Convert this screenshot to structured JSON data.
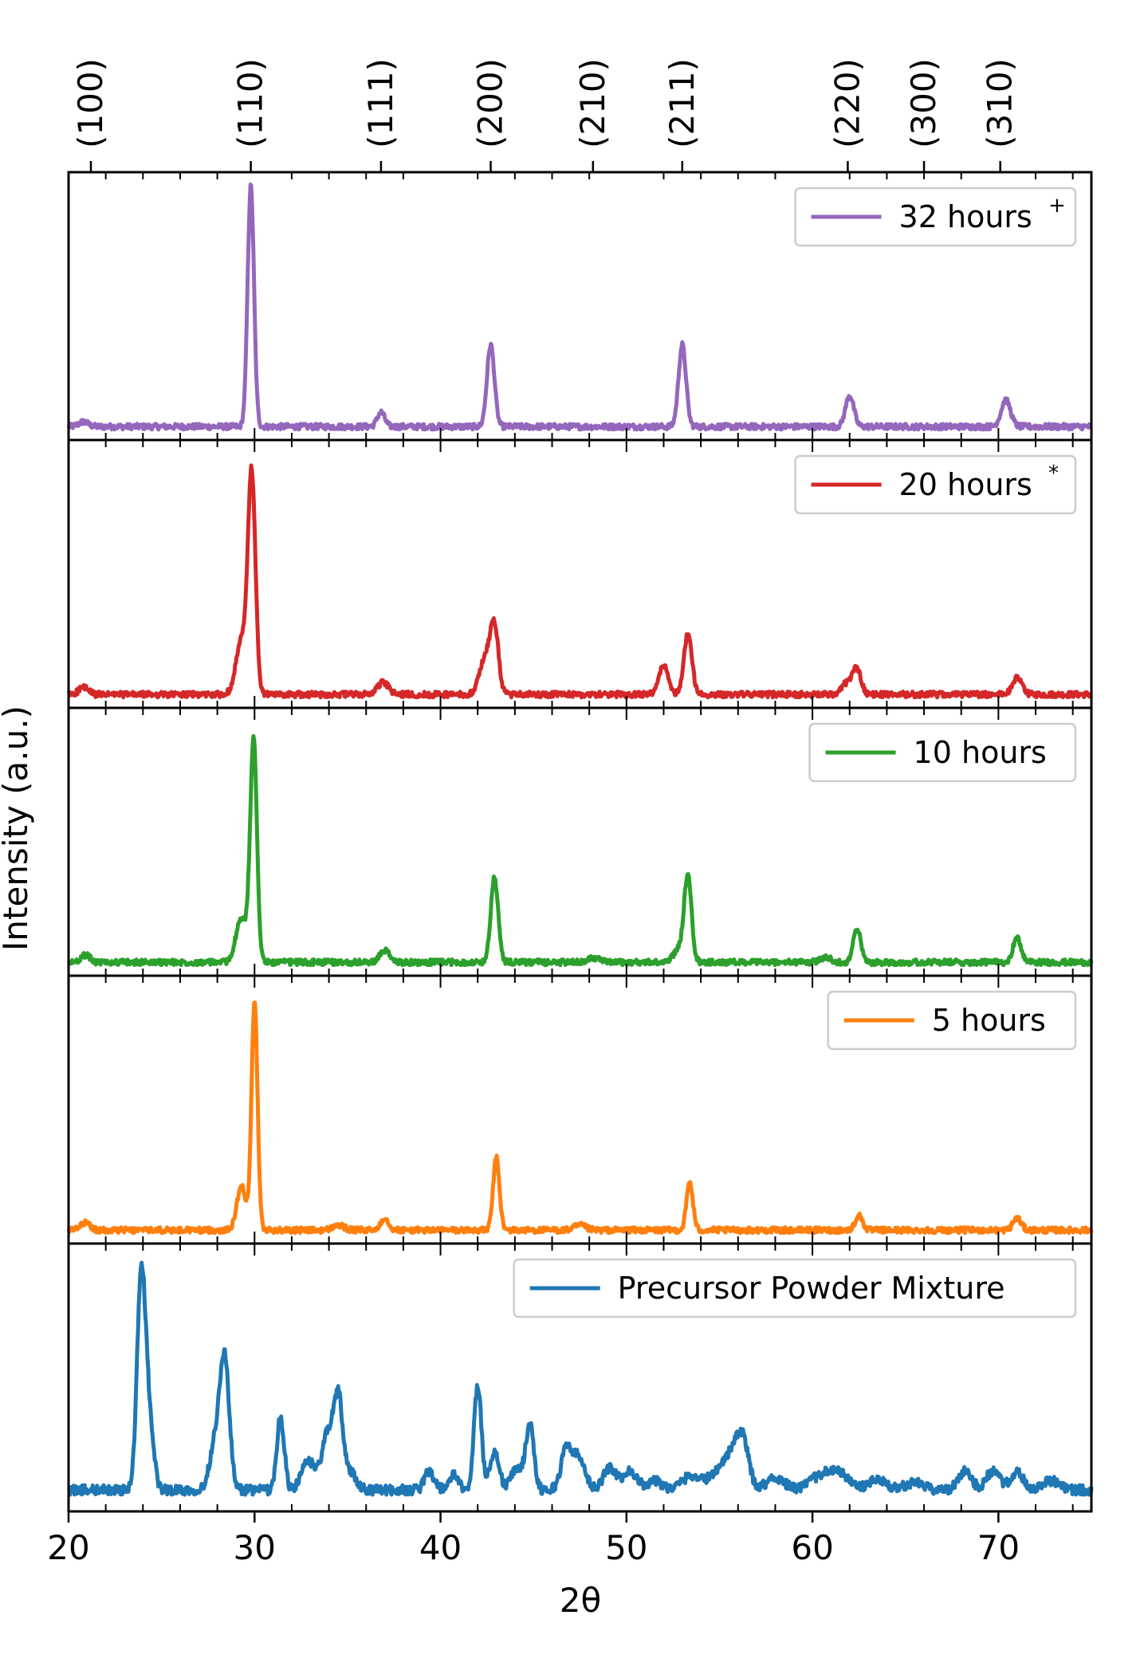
{
  "chart_data": {
    "type": "line",
    "xlabel": "2θ",
    "ylabel": "Intensity (a.u.)",
    "xlim": [
      20,
      75
    ],
    "x_ticks": [
      20,
      30,
      40,
      50,
      60,
      70
    ],
    "y_ticks": "none",
    "top_axis": {
      "tick_positions": [
        21.2,
        29.8,
        36.8,
        42.7,
        48.2,
        53.0,
        61.9,
        66.0,
        70.1
      ],
      "tick_labels": [
        "(100)",
        "(110)",
        "(111)",
        "(200)",
        "(210)",
        "(211)",
        "(220)",
        "(300)",
        "(310)"
      ]
    },
    "legend_placement": "top-right",
    "panels": [
      {
        "name": "32 hours",
        "legend_label": "32 hours",
        "legend_marker": "+",
        "color": "#9467bd",
        "baseline": 0.05,
        "peaks": [
          {
            "x": 20.8,
            "h": 0.02,
            "w": 0.25
          },
          {
            "x": 29.8,
            "h": 1.0,
            "w": 0.17
          },
          {
            "x": 36.8,
            "h": 0.06,
            "w": 0.2
          },
          {
            "x": 42.7,
            "h": 0.34,
            "w": 0.2
          },
          {
            "x": 53.0,
            "h": 0.34,
            "w": 0.2
          },
          {
            "x": 62.0,
            "h": 0.13,
            "w": 0.22
          },
          {
            "x": 70.4,
            "h": 0.11,
            "w": 0.25
          }
        ]
      },
      {
        "name": "20 hours",
        "legend_label": "20 hours",
        "legend_marker": "*",
        "color": "#d62728",
        "baseline": 0.05,
        "peaks": [
          {
            "x": 20.8,
            "h": 0.03,
            "w": 0.25
          },
          {
            "x": 29.3,
            "h": 0.22,
            "w": 0.3
          },
          {
            "x": 29.85,
            "h": 0.9,
            "w": 0.2
          },
          {
            "x": 36.9,
            "h": 0.05,
            "w": 0.3
          },
          {
            "x": 42.4,
            "h": 0.15,
            "w": 0.3
          },
          {
            "x": 42.9,
            "h": 0.27,
            "w": 0.22
          },
          {
            "x": 52.0,
            "h": 0.12,
            "w": 0.25
          },
          {
            "x": 53.3,
            "h": 0.25,
            "w": 0.22
          },
          {
            "x": 61.9,
            "h": 0.05,
            "w": 0.3
          },
          {
            "x": 62.4,
            "h": 0.1,
            "w": 0.22
          },
          {
            "x": 71.0,
            "h": 0.07,
            "w": 0.25
          }
        ]
      },
      {
        "name": "10 hours",
        "legend_label": "10 hours",
        "legend_marker": "",
        "color": "#2ca02c",
        "baseline": 0.05,
        "peaks": [
          {
            "x": 20.9,
            "h": 0.03,
            "w": 0.25
          },
          {
            "x": 29.3,
            "h": 0.18,
            "w": 0.3
          },
          {
            "x": 29.95,
            "h": 0.92,
            "w": 0.18
          },
          {
            "x": 37.0,
            "h": 0.05,
            "w": 0.25
          },
          {
            "x": 42.9,
            "h": 0.35,
            "w": 0.2
          },
          {
            "x": 48.2,
            "h": 0.02,
            "w": 0.3
          },
          {
            "x": 52.8,
            "h": 0.05,
            "w": 0.3
          },
          {
            "x": 53.3,
            "h": 0.35,
            "w": 0.2
          },
          {
            "x": 60.7,
            "h": 0.02,
            "w": 0.3
          },
          {
            "x": 62.4,
            "h": 0.14,
            "w": 0.2
          },
          {
            "x": 71.0,
            "h": 0.1,
            "w": 0.22
          }
        ]
      },
      {
        "name": "5 hours",
        "legend_label": "5 hours",
        "legend_marker": "",
        "color": "#ff7f0e",
        "baseline": 0.05,
        "peaks": [
          {
            "x": 20.9,
            "h": 0.03,
            "w": 0.25
          },
          {
            "x": 29.3,
            "h": 0.18,
            "w": 0.25
          },
          {
            "x": 30.0,
            "h": 0.95,
            "w": 0.16
          },
          {
            "x": 34.5,
            "h": 0.02,
            "w": 0.3
          },
          {
            "x": 37.0,
            "h": 0.05,
            "w": 0.22
          },
          {
            "x": 43.0,
            "h": 0.3,
            "w": 0.17
          },
          {
            "x": 47.5,
            "h": 0.02,
            "w": 0.3
          },
          {
            "x": 53.4,
            "h": 0.2,
            "w": 0.17
          },
          {
            "x": 62.5,
            "h": 0.06,
            "w": 0.2
          },
          {
            "x": 71.0,
            "h": 0.05,
            "w": 0.22
          }
        ]
      },
      {
        "name": "Precursor Powder Mixture",
        "legend_label": "Precursor Powder Mixture",
        "legend_marker": "",
        "color": "#1f77b4",
        "baseline": 0.08,
        "peaks": [
          {
            "x": 23.9,
            "h": 0.85,
            "w": 0.22
          },
          {
            "x": 24.3,
            "h": 0.3,
            "w": 0.25
          },
          {
            "x": 27.9,
            "h": 0.2,
            "w": 0.3
          },
          {
            "x": 28.4,
            "h": 0.52,
            "w": 0.25
          },
          {
            "x": 31.4,
            "h": 0.3,
            "w": 0.2
          },
          {
            "x": 32.9,
            "h": 0.12,
            "w": 0.35
          },
          {
            "x": 33.9,
            "h": 0.22,
            "w": 0.3
          },
          {
            "x": 34.5,
            "h": 0.38,
            "w": 0.25
          },
          {
            "x": 35.2,
            "h": 0.07,
            "w": 0.3
          },
          {
            "x": 39.4,
            "h": 0.08,
            "w": 0.25
          },
          {
            "x": 40.7,
            "h": 0.06,
            "w": 0.25
          },
          {
            "x": 42.0,
            "h": 0.43,
            "w": 0.2
          },
          {
            "x": 42.9,
            "h": 0.16,
            "w": 0.25
          },
          {
            "x": 44.1,
            "h": 0.09,
            "w": 0.3
          },
          {
            "x": 44.8,
            "h": 0.27,
            "w": 0.22
          },
          {
            "x": 46.8,
            "h": 0.18,
            "w": 0.3
          },
          {
            "x": 47.5,
            "h": 0.13,
            "w": 0.3
          },
          {
            "x": 49.1,
            "h": 0.09,
            "w": 0.35
          },
          {
            "x": 50.2,
            "h": 0.08,
            "w": 0.35
          },
          {
            "x": 51.5,
            "h": 0.04,
            "w": 0.4
          },
          {
            "x": 53.5,
            "h": 0.06,
            "w": 0.5
          },
          {
            "x": 55.0,
            "h": 0.08,
            "w": 0.5
          },
          {
            "x": 55.8,
            "h": 0.14,
            "w": 0.4
          },
          {
            "x": 56.3,
            "h": 0.16,
            "w": 0.3
          },
          {
            "x": 58.0,
            "h": 0.05,
            "w": 0.5
          },
          {
            "x": 60.5,
            "h": 0.06,
            "w": 0.6
          },
          {
            "x": 61.5,
            "h": 0.06,
            "w": 0.5
          },
          {
            "x": 63.5,
            "h": 0.04,
            "w": 0.5
          },
          {
            "x": 65.5,
            "h": 0.03,
            "w": 0.5
          },
          {
            "x": 68.2,
            "h": 0.08,
            "w": 0.35
          },
          {
            "x": 69.7,
            "h": 0.08,
            "w": 0.35
          },
          {
            "x": 71.0,
            "h": 0.07,
            "w": 0.35
          },
          {
            "x": 72.8,
            "h": 0.04,
            "w": 0.4
          }
        ]
      }
    ]
  }
}
